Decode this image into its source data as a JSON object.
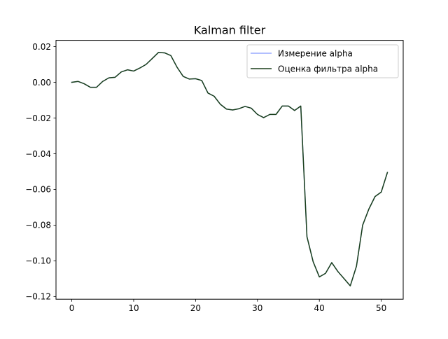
{
  "chart_data": {
    "type": "line",
    "title": "Kalman filter",
    "xlabel": "",
    "ylabel": "",
    "xlim": [
      -2.55,
      53.55
    ],
    "ylim": [
      -0.1215,
      0.0235
    ],
    "xticks": [
      0,
      10,
      20,
      30,
      40,
      50
    ],
    "xtick_labels": [
      "0",
      "10",
      "20",
      "30",
      "40",
      "50"
    ],
    "yticks": [
      0.02,
      0.0,
      -0.02,
      -0.04,
      -0.06,
      -0.08,
      -0.1,
      -0.12
    ],
    "ytick_labels": [
      "0.02",
      "0.00",
      "−0.02",
      "−0.04",
      "−0.06",
      "−0.08",
      "−0.10",
      "−0.12"
    ],
    "grid": false,
    "legend_position": "top-right",
    "x": [
      0,
      1,
      2,
      3,
      4,
      5,
      6,
      7,
      8,
      9,
      10,
      11,
      12,
      13,
      14,
      15,
      16,
      17,
      18,
      19,
      20,
      21,
      22,
      23,
      24,
      25,
      26,
      27,
      28,
      29,
      30,
      31,
      32,
      33,
      34,
      35,
      36,
      37,
      38,
      39,
      40,
      41,
      42,
      43,
      44,
      45,
      46,
      47,
      48,
      49,
      50,
      51
    ],
    "series": [
      {
        "name": "Измерение alpha",
        "color": "#99aaff",
        "values": [
          0.0,
          0.0005,
          -0.0008,
          -0.0028,
          -0.0028,
          0.0005,
          0.0025,
          0.0028,
          0.0058,
          0.007,
          0.0063,
          0.008,
          0.01,
          0.0133,
          0.0167,
          0.0165,
          0.015,
          0.0085,
          0.0033,
          0.0018,
          0.002,
          0.001,
          -0.006,
          -0.0078,
          -0.0123,
          -0.015,
          -0.0155,
          -0.0148,
          -0.0135,
          -0.0145,
          -0.018,
          -0.0198,
          -0.018,
          -0.018,
          -0.0133,
          -0.0133,
          -0.0158,
          -0.0133,
          -0.0865,
          -0.1005,
          -0.109,
          -0.107,
          -0.101,
          -0.106,
          -0.11,
          -0.114,
          -0.103,
          -0.08,
          -0.071,
          -0.064,
          -0.0615,
          -0.0505
        ]
      },
      {
        "name": "Оценка фильтра alpha",
        "color": "#1a3f1a",
        "values": [
          0.0,
          0.0005,
          -0.0008,
          -0.0028,
          -0.0028,
          0.0005,
          0.0025,
          0.0028,
          0.0058,
          0.007,
          0.0063,
          0.008,
          0.01,
          0.0133,
          0.0167,
          0.0165,
          0.015,
          0.0085,
          0.0033,
          0.0018,
          0.002,
          0.001,
          -0.006,
          -0.0078,
          -0.0123,
          -0.015,
          -0.0155,
          -0.0148,
          -0.0135,
          -0.0145,
          -0.018,
          -0.0198,
          -0.018,
          -0.018,
          -0.0133,
          -0.0133,
          -0.0158,
          -0.0133,
          -0.0865,
          -0.1005,
          -0.109,
          -0.107,
          -0.101,
          -0.106,
          -0.11,
          -0.114,
          -0.103,
          -0.08,
          -0.071,
          -0.064,
          -0.0615,
          -0.0505
        ]
      }
    ]
  }
}
